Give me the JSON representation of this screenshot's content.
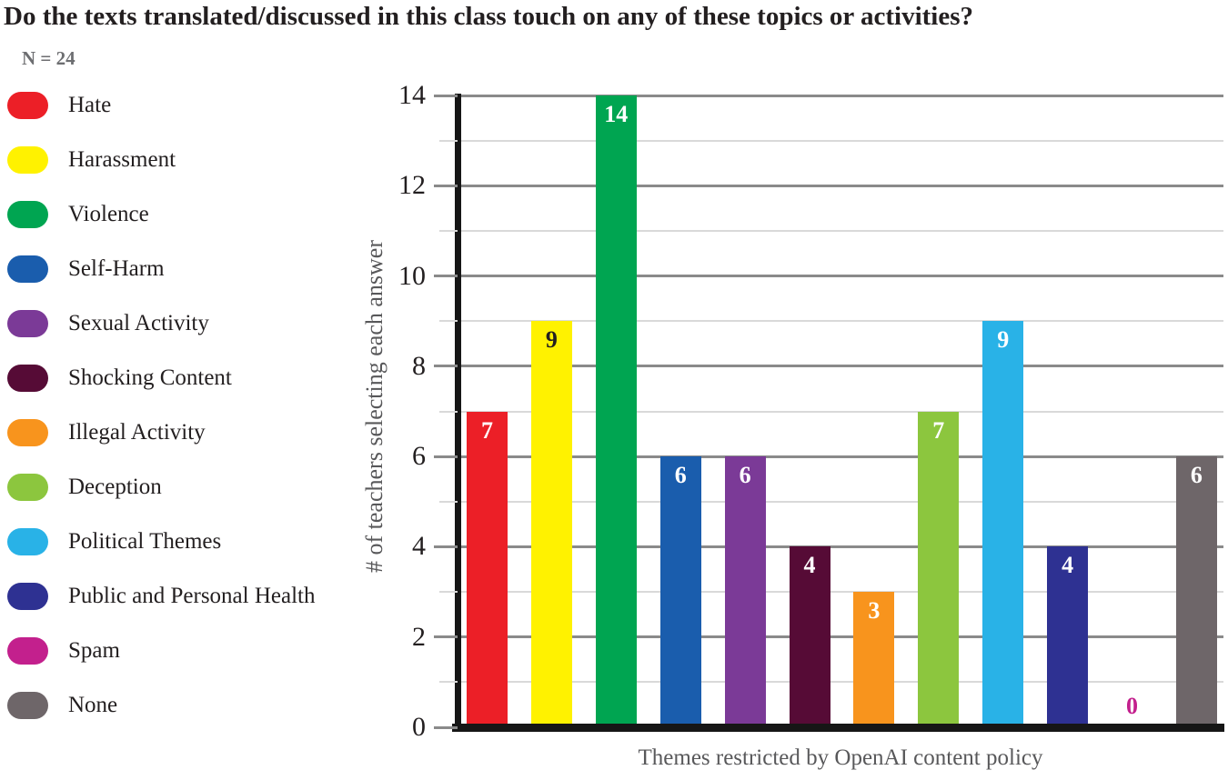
{
  "title": "Do the texts translated/discussed in this class touch on any of these topics or activities?",
  "sample_size_label": "N = 24",
  "chart_data": {
    "type": "bar",
    "title": "Do the texts translated/discussed in this class touch on any of these topics or activities?",
    "annotation": "N = 24",
    "xlabel": "Themes restricted by OpenAI content policy",
    "ylabel": "# of teachers selecting each answer",
    "ylim": [
      0,
      14
    ],
    "ytick_interval": 2,
    "grid": true,
    "legend_position": "left",
    "categories": [
      "Hate",
      "Harassment",
      "Violence",
      "Self-Harm",
      "Sexual Activity",
      "Shocking Content",
      "Illegal Activity",
      "Deception",
      "Political Themes",
      "Public and Personal Health",
      "Spam",
      "None"
    ],
    "values": [
      7,
      9,
      14,
      6,
      6,
      4,
      3,
      7,
      9,
      4,
      0,
      6
    ],
    "colors": [
      "#EC1F27",
      "#FFF200",
      "#00A551",
      "#1A5DAD",
      "#7B3A97",
      "#560B36",
      "#F8941D",
      "#8CC63E",
      "#29B2E7",
      "#2E3192",
      "#C3208D",
      "#6E6669"
    ],
    "value_label_colors": [
      "#FFFFFF",
      "#231F20",
      "#FFFFFF",
      "#FFFFFF",
      "#FFFFFF",
      "#FFFFFF",
      "#FFFFFF",
      "#FFFFFF",
      "#FFFFFF",
      "#FFFFFF",
      "#C3208D",
      "#FFFFFF"
    ]
  }
}
